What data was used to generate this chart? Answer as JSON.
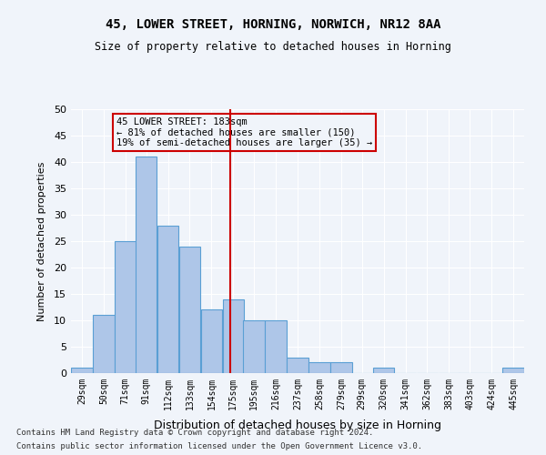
{
  "title1": "45, LOWER STREET, HORNING, NORWICH, NR12 8AA",
  "title2": "Size of property relative to detached houses in Horning",
  "xlabel": "Distribution of detached houses by size in Horning",
  "ylabel": "Number of detached properties",
  "bin_labels": [
    "29sqm",
    "50sqm",
    "71sqm",
    "91sqm",
    "112sqm",
    "133sqm",
    "154sqm",
    "175sqm",
    "195sqm",
    "216sqm",
    "237sqm",
    "258sqm",
    "279sqm",
    "299sqm",
    "320sqm",
    "341sqm",
    "362sqm",
    "383sqm",
    "403sqm",
    "424sqm",
    "445sqm"
  ],
  "bin_edges": [
    29,
    50,
    71,
    91,
    112,
    133,
    154,
    175,
    195,
    216,
    237,
    258,
    279,
    299,
    320,
    341,
    362,
    383,
    403,
    424,
    445
  ],
  "bar_heights": [
    1,
    11,
    25,
    41,
    28,
    24,
    12,
    14,
    10,
    10,
    3,
    2,
    2,
    0,
    1,
    0,
    0,
    0,
    0,
    0,
    1
  ],
  "bar_color": "#aec6e8",
  "bar_edge_color": "#5a9fd4",
  "property_size": 183,
  "line_color": "#cc0000",
  "annotation_title": "45 LOWER STREET: 183sqm",
  "annotation_line1": "← 81% of detached houses are smaller (150)",
  "annotation_line2": "19% of semi-detached houses are larger (35) →",
  "annotation_box_color": "#cc0000",
  "ylim": [
    0,
    50
  ],
  "yticks": [
    0,
    5,
    10,
    15,
    20,
    25,
    30,
    35,
    40,
    45,
    50
  ],
  "footer1": "Contains HM Land Registry data © Crown copyright and database right 2024.",
  "footer2": "Contains public sector information licensed under the Open Government Licence v3.0.",
  "bg_color": "#f0f4fa"
}
